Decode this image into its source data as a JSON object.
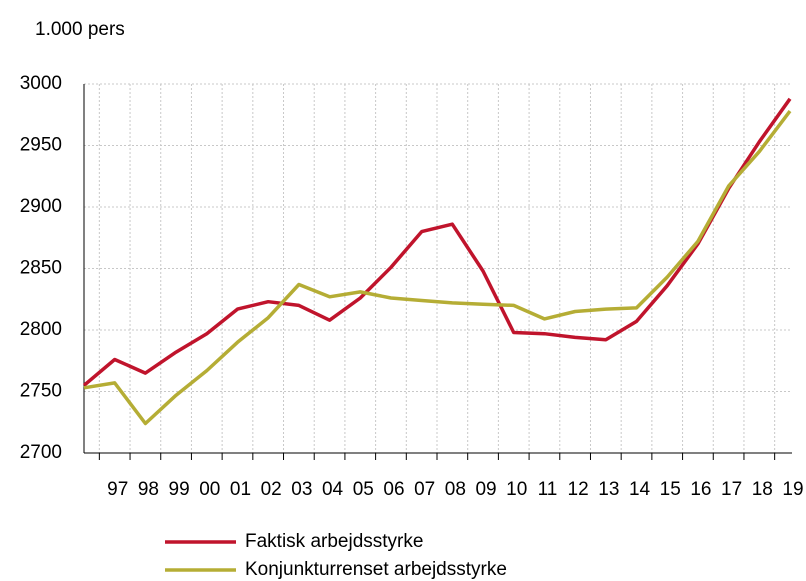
{
  "chart_data": {
    "type": "line",
    "y_label": "1.000 pers",
    "categories": [
      null,
      "97",
      "98",
      "99",
      "00",
      "01",
      "02",
      "03",
      "04",
      "05",
      "06",
      "07",
      "08",
      "09",
      "10",
      "11",
      "12",
      "13",
      "14",
      "15",
      "16",
      "17",
      "18",
      "19"
    ],
    "series": [
      {
        "name": "Faktisk arbejdsstyrke",
        "color": "#c0142c",
        "values": [
          2755,
          2776,
          2765,
          2782,
          2797,
          2817,
          2823,
          2820,
          2808,
          2826,
          2851,
          2880,
          2886,
          2848,
          2798,
          2797,
          2794,
          2792,
          2807,
          2836,
          2870,
          2915,
          2953,
          2988
        ]
      },
      {
        "name": "Konjunkturrenset arbejdsstyrke",
        "color": "#b5ad35",
        "values": [
          2753,
          2757,
          2724,
          2747,
          2767,
          2790,
          2810,
          2837,
          2827,
          2831,
          2826,
          2824,
          2822,
          2821,
          2820,
          2809,
          2815,
          2817,
          2818,
          2843,
          2872,
          2917,
          2945,
          2978
        ]
      }
    ],
    "ylim": [
      2700,
      3000
    ],
    "yticks": [
      2700,
      2750,
      2800,
      2850,
      2900,
      2950,
      3000
    ],
    "grid": true
  }
}
